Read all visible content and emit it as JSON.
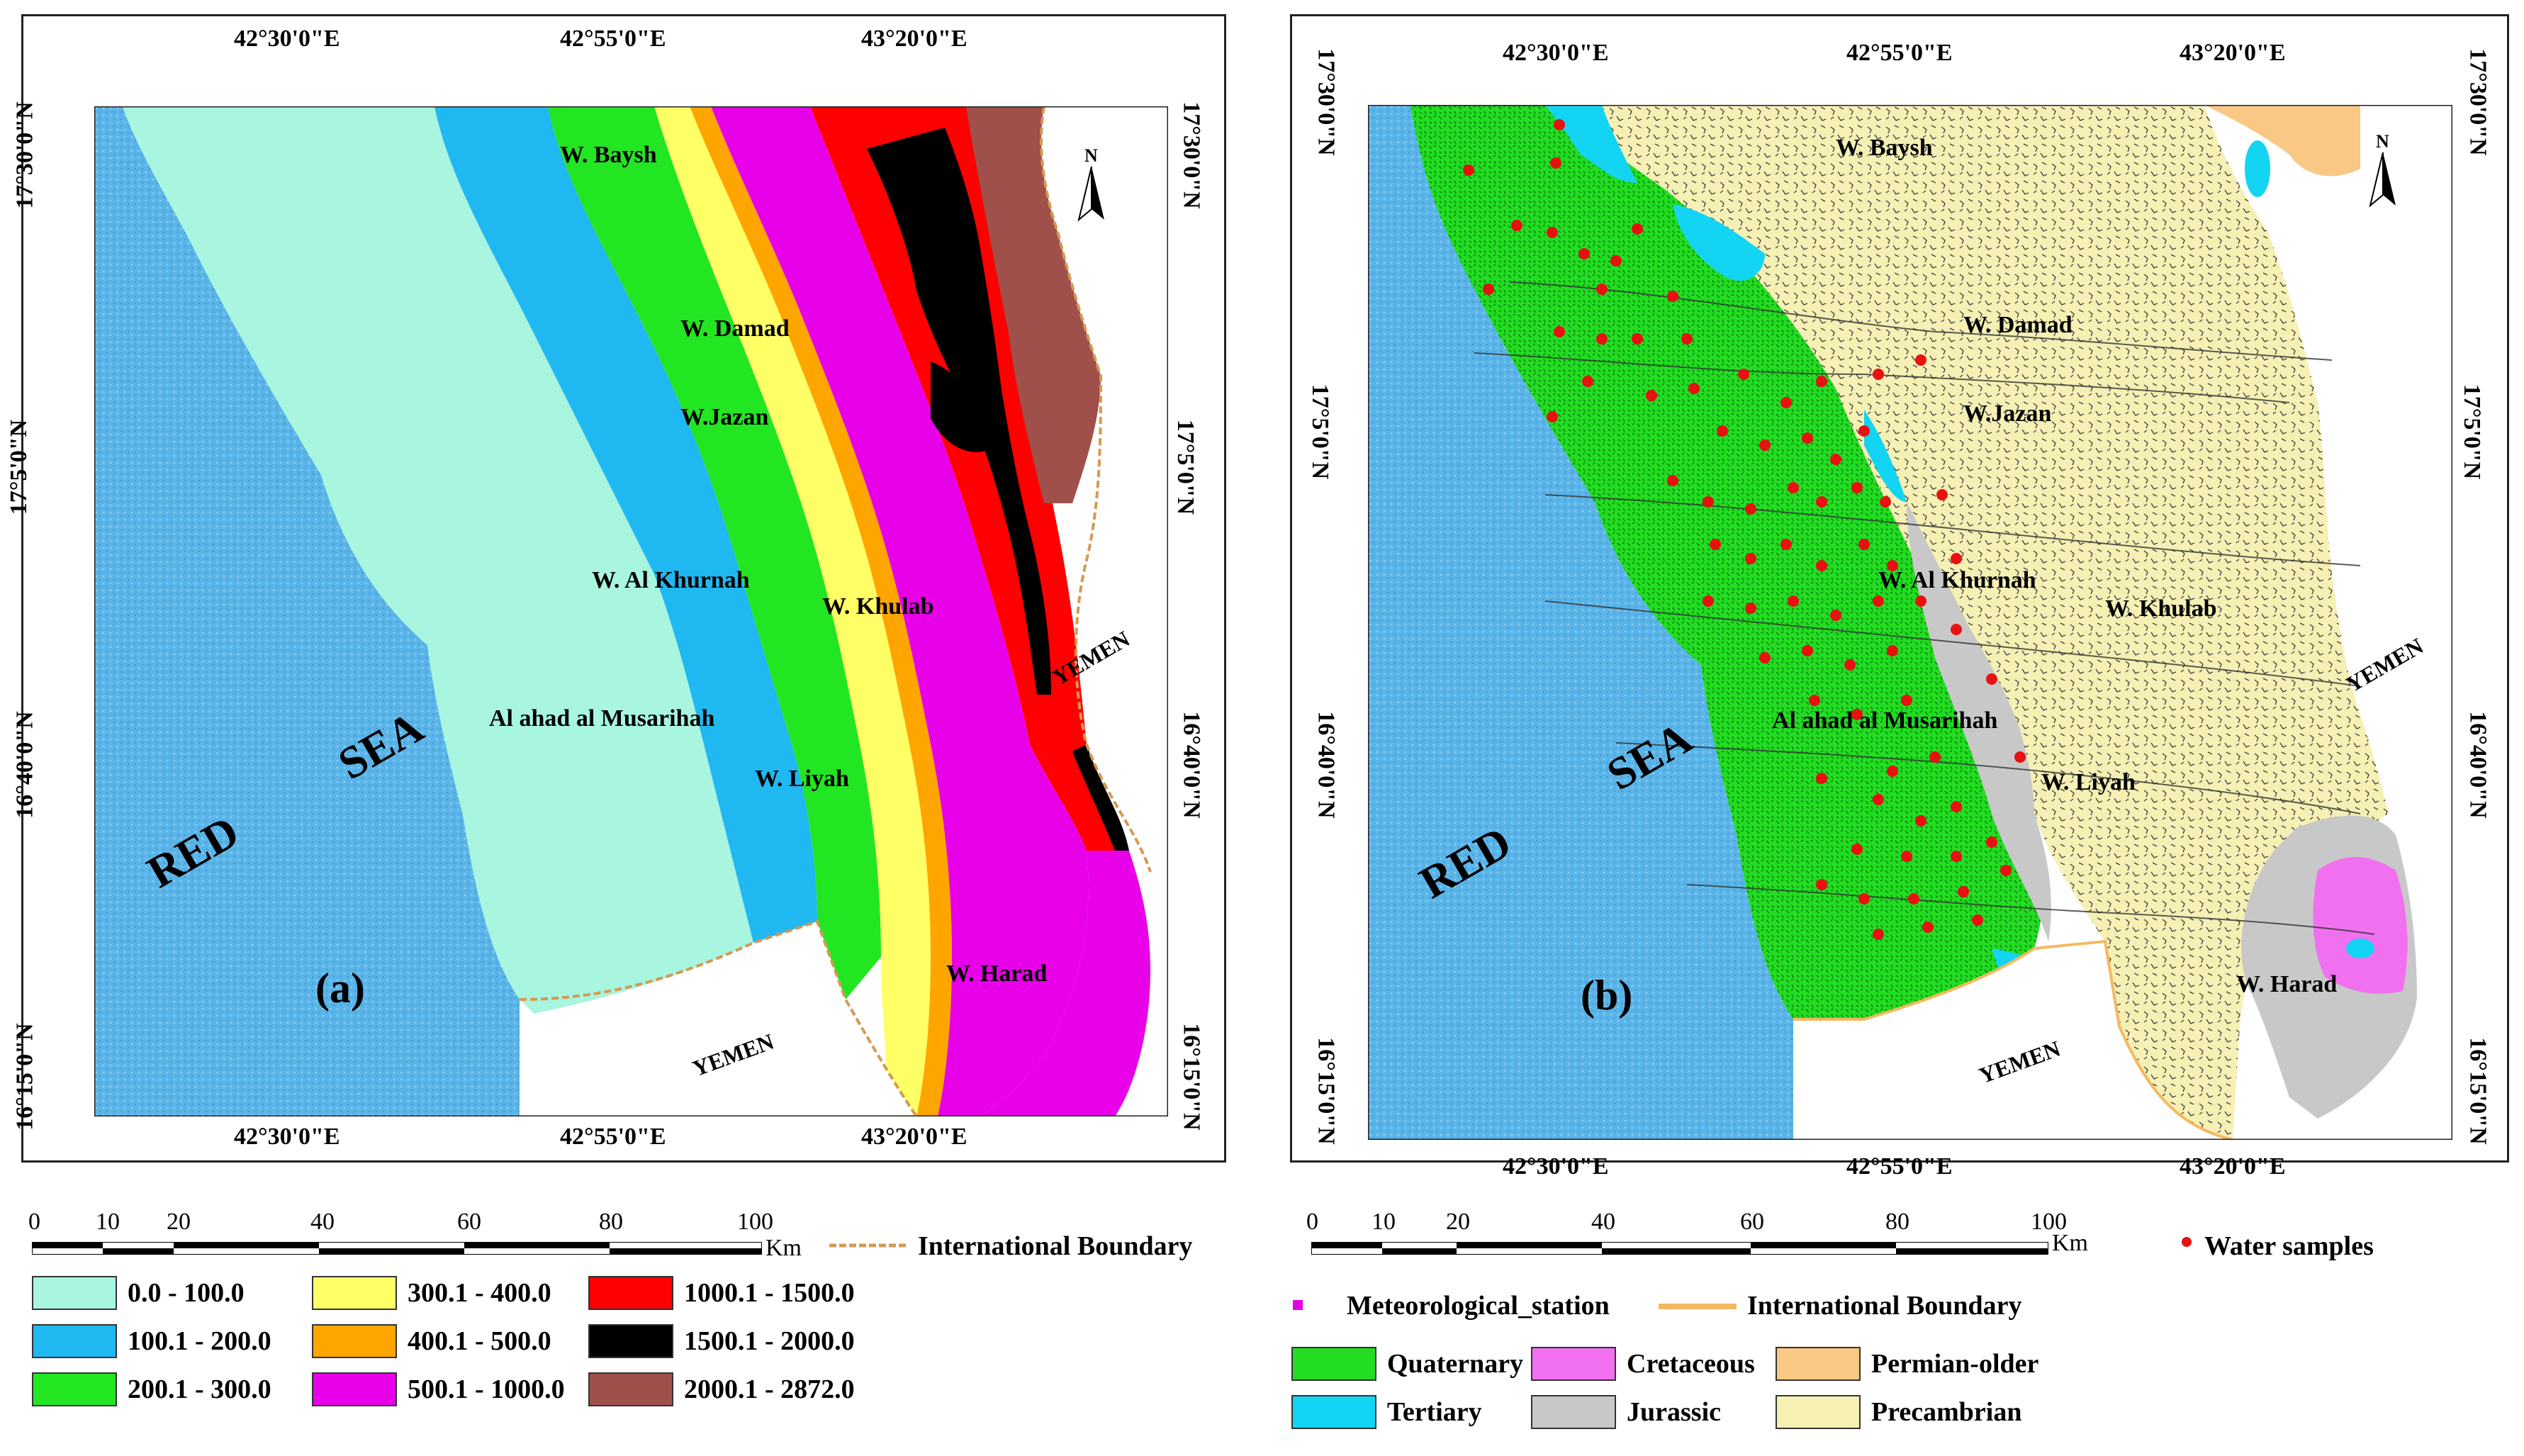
{
  "panel_a": {
    "label": "(a)",
    "top_coords": [
      "42°30'0\"E",
      "42°55'0\"E",
      "43°20'0\"E"
    ],
    "bottom_coords": [
      "42°30'0\"E",
      "42°55'0\"E",
      "43°20'0\"E"
    ],
    "left_coords": [
      "17°30'0\"N",
      "17°5'0\"N",
      "16°40'0\"N",
      "16°15'0\"N"
    ],
    "right_coords": [
      "17°30'0\"N",
      "17°5'0\"N",
      "16°40'0\"N",
      "16°15'0\"N"
    ],
    "places": {
      "baysh": "W. Baysh",
      "damad": "W. Damad",
      "jazan": "W.Jazan",
      "khurnah": "W. Al Khurnah",
      "khulab": "W. Khulab",
      "musarihah": "Al ahad al Musarihah",
      "liyah": "W. Liyah",
      "harad": "W. Harad",
      "yemen_east": "YEMEN",
      "yemen_south": "YEMEN",
      "red": "RED",
      "sea": "SEA"
    },
    "north": "N",
    "scale": {
      "ticks": [
        "0",
        "10",
        "20",
        "40",
        "60",
        "80",
        "100"
      ],
      "unit": "Km"
    },
    "boundary_label": "International Boundary",
    "legend": [
      {
        "range": "0.0 - 100.0",
        "color": "#a8f5e0"
      },
      {
        "range": "100.1 - 200.0",
        "color": "#20b8f0"
      },
      {
        "range": "200.1 - 300.0",
        "color": "#22e622"
      },
      {
        "range": "300.1 - 400.0",
        "color": "#ffff66"
      },
      {
        "range": "400.1 - 500.0",
        "color": "#ffa500"
      },
      {
        "range": "500.1 - 1000.0",
        "color": "#e800e8"
      },
      {
        "range": "1000.1 - 1500.0",
        "color": "#ff0000"
      },
      {
        "range": "1500.1 - 2000.0",
        "color": "#000000"
      },
      {
        "range": "2000.1 - 2872.0",
        "color": "#a0504a"
      }
    ]
  },
  "panel_b": {
    "label": "(b)",
    "top_coords": [
      "42°30'0\"E",
      "42°55'0\"E",
      "43°20'0\"E"
    ],
    "bottom_coords": [
      "42°30'0\"E",
      "42°55'0\"E",
      "43°20'0\"E"
    ],
    "left_coords": [
      "17°30'0\"N",
      "17°5'0\"N",
      "16°40'0\"N",
      "16°15'0\"N"
    ],
    "right_coords": [
      "17°30'0\"N",
      "17°5'0\"N",
      "16°40'0\"N",
      "16°15'0\"N"
    ],
    "places": {
      "baysh": "W. Baysh",
      "damad": "W. Damad",
      "jazan": "W.Jazan",
      "khurnah": "W. Al Khurnah",
      "khulab": "W. Khulab",
      "musarihah": "Al ahad al Musarihah",
      "liyah": "W. Liyah",
      "harad": "W. Harad",
      "yemen_east": "YEMEN",
      "yemen_south": "YEMEN",
      "red": "RED",
      "sea": "SEA"
    },
    "north": "N",
    "scale": {
      "ticks": [
        "0",
        "10",
        "20",
        "40",
        "60",
        "80",
        "100"
      ],
      "unit": "Km"
    },
    "water_samples_label": "Water samples",
    "met_station_label": "Meteorological_station",
    "boundary_label": "International Boundary",
    "legend": [
      {
        "name": "Quaternary",
        "color": "#22dd22"
      },
      {
        "name": "Cretaceous",
        "color": "#f070f0"
      },
      {
        "name": "Permian-older",
        "color": "#f8c884"
      },
      {
        "name": "Tertiary",
        "color": "#14d4f4"
      },
      {
        "name": "Jurassic",
        "color": "#c8c8c8"
      },
      {
        "name": "Precambrian",
        "color": "#f6f0b4"
      }
    ],
    "colors": {
      "sea": "#5ab4e8",
      "sample": "#e81010",
      "met_station": "#e000e0",
      "boundary": "#f5b860"
    }
  }
}
